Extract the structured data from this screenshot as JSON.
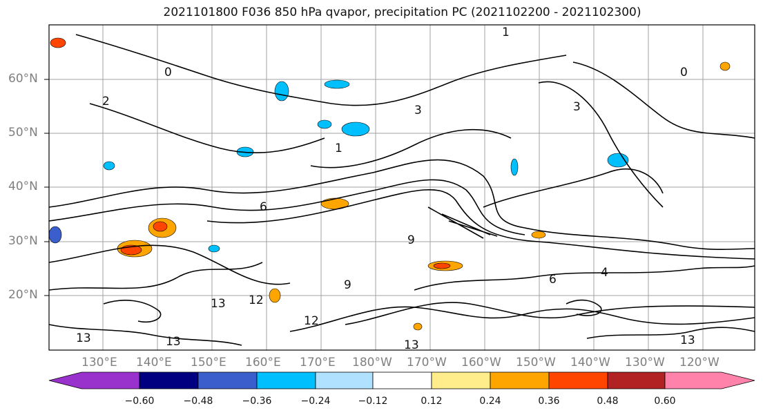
{
  "title": "2021101800 F036 850 hPa qvapor, precipitation PC (2021102200 - 2021102300)",
  "lat_labels": [
    "60°N",
    "50°N",
    "40°N",
    "30°N",
    "20°N"
  ],
  "lon_labels": [
    "130°E",
    "140°E",
    "150°E",
    "160°E",
    "170°E",
    "180°W",
    "170°W",
    "160°W",
    "150°W",
    "140°W",
    "130°W",
    "120°W"
  ],
  "contour_labels": [
    "1",
    "0",
    "2",
    "3",
    "3",
    "6",
    "9",
    "12",
    "13",
    "13",
    "13",
    "12",
    "13",
    "13",
    "9",
    "6",
    "4",
    "1",
    "0"
  ],
  "colorbar": {
    "colors": [
      "#9932cc",
      "#000080",
      "#3a5fcd",
      "#00bfff",
      "#b0e2ff",
      "#ffffff",
      "#ffec8b",
      "#ffa500",
      "#ff4500",
      "#b22222",
      "#ff82ab"
    ],
    "tick_labels": [
      "−0.60",
      "−0.48",
      "−0.36",
      "−0.24",
      "−0.12",
      "0.12",
      "0.24",
      "0.36",
      "0.48",
      "0.60"
    ]
  },
  "fill_colors": {
    "land_line": "#000000",
    "grid": "#a0a0a0"
  }
}
